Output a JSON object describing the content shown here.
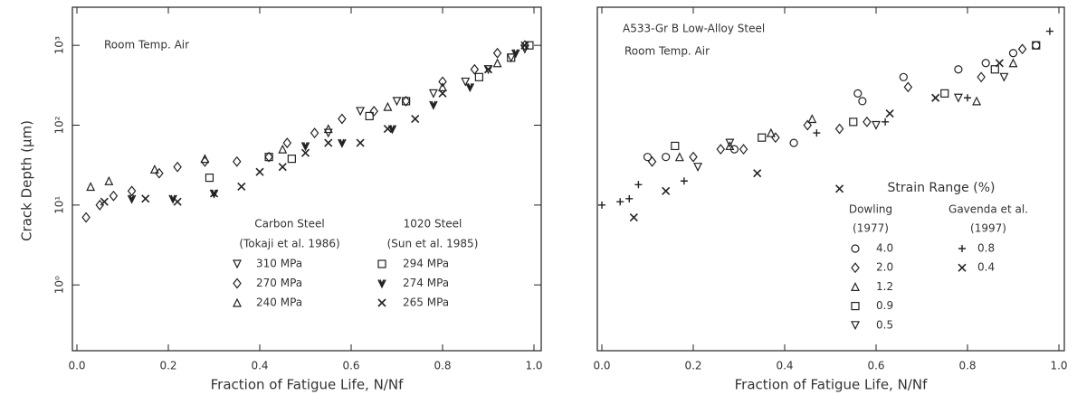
{
  "chart_data": [
    {
      "type": "scatter",
      "log_y": true,
      "annotation": "Room Temp. Air",
      "x_label": "Fraction of Fatigue Life, N/Nf",
      "y_label": "Crack Depth (μm)",
      "xlim": [
        0,
        1
      ],
      "xticks": [
        {
          "value": 0,
          "label": "0.0"
        },
        {
          "value": 0.2,
          "label": "0.2"
        },
        {
          "value": 0.4,
          "label": "0.4"
        },
        {
          "value": 0.6,
          "label": "0.6"
        },
        {
          "value": 0.8,
          "label": "0.8"
        },
        {
          "value": 1,
          "label": "1.0"
        }
      ],
      "ylim": [
        0.15,
        3000
      ],
      "yticks": [
        {
          "value": 1,
          "label": "10⁰"
        },
        {
          "value": 10,
          "label": "10¹"
        },
        {
          "value": 100,
          "label": "10²"
        },
        {
          "value": 1000,
          "label": "10³"
        }
      ],
      "legend_groups": [
        {
          "title": "Carbon Steel",
          "subtitle": "(Tokaji et al. 1986)"
        },
        {
          "title": "1020 Steel",
          "subtitle": "(Sun et al. 1985)"
        }
      ],
      "series": [
        {
          "name": "310 MPa",
          "marker": "triangle-down",
          "color": "#222",
          "x": [
            0.55,
            0.62,
            0.7,
            0.78,
            0.85,
            0.9,
            0.95,
            0.98
          ],
          "y": [
            80,
            150,
            200,
            250,
            350,
            500,
            700,
            900
          ]
        },
        {
          "name": "270 MPa",
          "marker": "diamond",
          "color": "#222",
          "x": [
            0.02,
            0.05,
            0.08,
            0.12,
            0.18,
            0.22,
            0.28,
            0.35,
            0.42,
            0.46,
            0.52,
            0.58,
            0.65,
            0.72,
            0.8,
            0.87,
            0.92,
            0.98
          ],
          "y": [
            7,
            10,
            13,
            15,
            25,
            30,
            35,
            35,
            40,
            60,
            80,
            120,
            150,
            200,
            350,
            500,
            800,
            1000
          ]
        },
        {
          "name": "240 MPa",
          "marker": "triangle-up",
          "color": "#222",
          "x": [
            0.03,
            0.07,
            0.17,
            0.28,
            0.45,
            0.55,
            0.68,
            0.8,
            0.92
          ],
          "y": [
            17,
            20,
            28,
            38,
            50,
            90,
            170,
            300,
            600
          ]
        },
        {
          "name": "294 MPa",
          "marker": "square",
          "color": "#222",
          "x": [
            0.29,
            0.42,
            0.47,
            0.64,
            0.72,
            0.88,
            0.95,
            0.99
          ],
          "y": [
            22,
            40,
            38,
            130,
            200,
            400,
            700,
            1000
          ]
        },
        {
          "name": "274 MPa",
          "marker": "v",
          "color": "#222",
          "x": [
            0.12,
            0.21,
            0.3,
            0.5,
            0.58,
            0.69,
            0.78,
            0.86,
            0.96
          ],
          "y": [
            12,
            12,
            14,
            55,
            60,
            90,
            180,
            300,
            800
          ]
        },
        {
          "name": "265 MPa",
          "marker": "x",
          "color": "#222",
          "x": [
            0.06,
            0.15,
            0.22,
            0.3,
            0.36,
            0.4,
            0.45,
            0.5,
            0.55,
            0.62,
            0.68,
            0.74,
            0.8,
            0.9,
            0.98
          ],
          "y": [
            11,
            12,
            11,
            14,
            17,
            26,
            30,
            45,
            60,
            60,
            90,
            120,
            250,
            500,
            1000
          ]
        }
      ]
    },
    {
      "type": "scatter",
      "log_y": true,
      "title": "A533-Gr B Low-Alloy Steel",
      "annotation": "Room Temp. Air",
      "x_label": "Fraction of Fatigue Life, N/Nf",
      "xlim": [
        0,
        1
      ],
      "xticks": [
        {
          "value": 0,
          "label": "0.0"
        },
        {
          "value": 0.2,
          "label": "0.2"
        },
        {
          "value": 0.4,
          "label": "0.4"
        },
        {
          "value": 0.6,
          "label": "0.6"
        },
        {
          "value": 0.8,
          "label": "0.8"
        },
        {
          "value": 1,
          "label": "1.0"
        }
      ],
      "ylim": [
        0.15,
        3000
      ],
      "legend_title": "Strain Range (%)",
      "legend_groups": [
        {
          "title": "Dowling",
          "subtitle": "(1977)"
        },
        {
          "title": "Gavenda et al.",
          "subtitle": "(1997)"
        }
      ],
      "series": [
        {
          "name": "4.0",
          "marker": "circle",
          "color": "#222",
          "x": [
            0.1,
            0.14,
            0.29,
            0.42,
            0.56,
            0.57,
            0.66,
            0.78,
            0.84,
            0.9,
            0.95
          ],
          "y": [
            40,
            40,
            50,
            60,
            250,
            200,
            400,
            500,
            600,
            800,
            1000
          ]
        },
        {
          "name": "2.0",
          "marker": "diamond",
          "color": "#222",
          "x": [
            0.11,
            0.2,
            0.26,
            0.31,
            0.38,
            0.45,
            0.52,
            0.58,
            0.67,
            0.83,
            0.92
          ],
          "y": [
            35,
            40,
            50,
            50,
            70,
            100,
            90,
            110,
            300,
            400,
            900
          ]
        },
        {
          "name": "1.2",
          "marker": "triangle-up",
          "color": "#222",
          "x": [
            0.17,
            0.28,
            0.37,
            0.46,
            0.82,
            0.9
          ],
          "y": [
            40,
            55,
            80,
            120,
            200,
            600
          ]
        },
        {
          "name": "0.9",
          "marker": "square",
          "color": "#222",
          "x": [
            0.16,
            0.35,
            0.55,
            0.75,
            0.86,
            0.95
          ],
          "y": [
            55,
            70,
            110,
            250,
            500,
            1000
          ]
        },
        {
          "name": "0.5",
          "marker": "triangle-down",
          "color": "#222",
          "x": [
            0.21,
            0.28,
            0.6,
            0.78,
            0.88
          ],
          "y": [
            30,
            60,
            100,
            220,
            400
          ]
        },
        {
          "name": "0.8",
          "marker": "plus",
          "color": "#222",
          "x": [
            0.0,
            0.04,
            0.06,
            0.08,
            0.18,
            0.47,
            0.62,
            0.8,
            0.98
          ],
          "y": [
            10,
            11,
            12,
            18,
            20,
            80,
            110,
            220,
            1500
          ]
        },
        {
          "name": "0.4",
          "marker": "x",
          "color": "#222",
          "x": [
            0.07,
            0.14,
            0.34,
            0.52,
            0.63,
            0.73,
            0.87
          ],
          "y": [
            7,
            15,
            25,
            16,
            140,
            220,
            600
          ]
        }
      ]
    }
  ]
}
